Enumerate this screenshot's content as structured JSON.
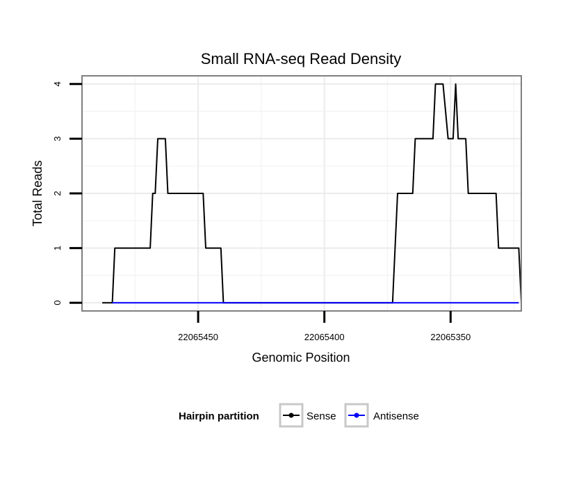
{
  "chart_data": {
    "type": "line",
    "title": "Small RNA-seq Read Density",
    "xlabel": "Genomic Position",
    "ylabel": "Total Reads",
    "x_reversed": true,
    "xlim": [
      22065496,
      22065322
    ],
    "ylim": [
      -0.15,
      4.15
    ],
    "xticks": [
      22065450,
      22065400,
      22065350
    ],
    "xtick_labels": [
      "22065450",
      "22065400",
      "22065350"
    ],
    "yticks": [
      0,
      1,
      2,
      3,
      4
    ],
    "ytick_labels": [
      "0",
      "1",
      "2",
      "3",
      "4"
    ],
    "grid": true,
    "legend": {
      "title": "Hairpin partition",
      "position": "bottom",
      "entries": [
        "Sense",
        "Antisense"
      ]
    },
    "series": [
      {
        "name": "Sense",
        "color": "#000000",
        "x": [
          22065488,
          22065484,
          22065483,
          22065469,
          22065468,
          22065467,
          22065466,
          22065463,
          22065462,
          22065448,
          22065447,
          22065441,
          22065440,
          22065431,
          22065417,
          22065419,
          22065373,
          22065371,
          22065365,
          22065364,
          22065357,
          22065356,
          22065353,
          22065351,
          22065349,
          22065348,
          22065347,
          22065344,
          22065343,
          22065332,
          22065331,
          22065323,
          22065322
        ],
        "y": [
          0,
          0,
          1,
          1,
          2,
          2,
          3,
          3,
          2,
          2,
          1,
          1,
          0,
          0,
          0,
          0,
          0,
          2,
          2,
          3,
          3,
          4,
          4,
          3,
          3,
          4,
          3,
          3,
          2,
          2,
          1,
          1,
          0
        ]
      },
      {
        "name": "Antisense",
        "color": "#0000ff",
        "x": [
          22065484,
          22065440,
          22065373,
          22065323
        ],
        "y": [
          0,
          0,
          0,
          0
        ]
      }
    ]
  }
}
